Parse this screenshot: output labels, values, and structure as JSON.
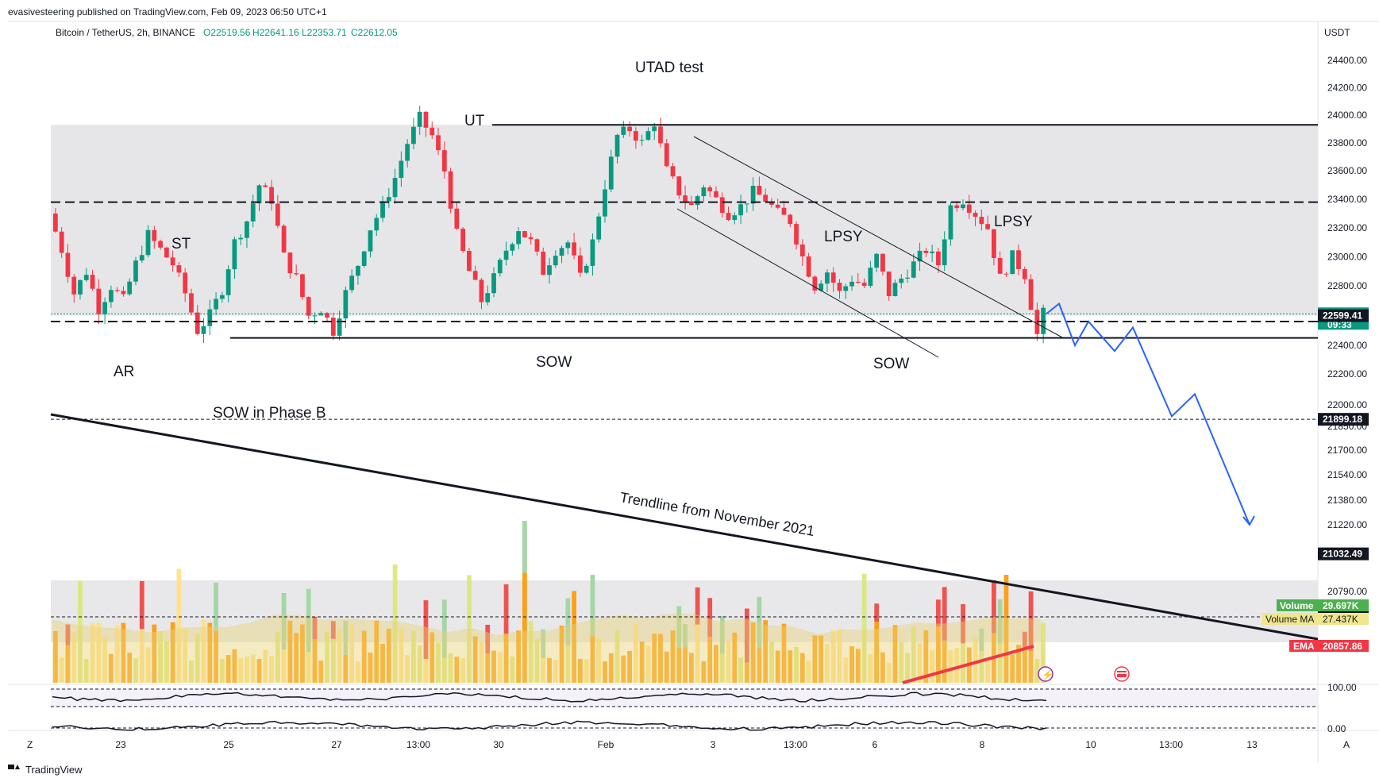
{
  "header": {
    "published": "evasivesteering published on TradingView.com, Feb 09, 2023 06:50 UTC+1",
    "symbol": "Bitcoin / TetherUS, 2h, BINANCE",
    "ohlc": {
      "open": "O22519.56",
      "high": "H22641.16",
      "low": "L22353.71",
      "close": "C22612.05"
    },
    "currency": "USDT"
  },
  "colors": {
    "up": "#089981",
    "down": "#f23645",
    "range": "#e6e6e8",
    "projection": "#2962ff",
    "vol_up": "#a5d6a7",
    "vol_down": "#ef5350",
    "vol_ma": "#e8d27a",
    "ema": "#f23645",
    "orange": "#ff9800"
  },
  "chart_data": {
    "type": "candlestick",
    "symbol": "BTCUSDT",
    "timeframe": "2h",
    "exchange": "BINANCE",
    "x_ticks": [
      "23",
      "25",
      "27",
      "13:00",
      "30",
      "Feb",
      "3",
      "13:00",
      "6",
      "8",
      "10",
      "13:00",
      "13"
    ],
    "y_ticks": [
      24400,
      24200,
      24000,
      23800,
      23600,
      23400,
      23200,
      23000,
      22800,
      22400,
      22200,
      22000,
      21850,
      21700,
      21540,
      21380,
      21220,
      20790,
      20650
    ],
    "ylim": [
      20560,
      24680
    ],
    "price_path": [
      [
        0,
        23300
      ],
      [
        2,
        23050
      ],
      [
        4,
        22750
      ],
      [
        6,
        22900
      ],
      [
        8,
        22650
      ],
      [
        10,
        22800
      ],
      [
        12,
        22700
      ],
      [
        14,
        22950
      ],
      [
        16,
        23150
      ],
      [
        18,
        23050
      ],
      [
        20,
        22950
      ],
      [
        22,
        22750
      ],
      [
        24,
        22500
      ],
      [
        26,
        22600
      ],
      [
        28,
        22780
      ],
      [
        30,
        23100
      ],
      [
        32,
        23250
      ],
      [
        34,
        23500
      ],
      [
        36,
        23400
      ],
      [
        38,
        23000
      ],
      [
        40,
        22850
      ],
      [
        42,
        22600
      ],
      [
        44,
        22650
      ],
      [
        46,
        22500
      ],
      [
        48,
        22750
      ],
      [
        50,
        22950
      ],
      [
        52,
        23200
      ],
      [
        54,
        23350
      ],
      [
        56,
        23550
      ],
      [
        58,
        23800
      ],
      [
        60,
        23980
      ],
      [
        62,
        23850
      ],
      [
        64,
        23600
      ],
      [
        66,
        23150
      ],
      [
        68,
        22900
      ],
      [
        70,
        22700
      ],
      [
        72,
        22850
      ],
      [
        74,
        23050
      ],
      [
        76,
        23200
      ],
      [
        78,
        23100
      ],
      [
        80,
        22900
      ],
      [
        82,
        23050
      ],
      [
        84,
        23100
      ],
      [
        86,
        22850
      ],
      [
        88,
        23100
      ],
      [
        90,
        23500
      ],
      [
        92,
        23850
      ],
      [
        94,
        23900
      ],
      [
        96,
        23800
      ],
      [
        98,
        23950
      ],
      [
        100,
        23600
      ],
      [
        102,
        23450
      ],
      [
        104,
        23350
      ],
      [
        106,
        23500
      ],
      [
        108,
        23400
      ],
      [
        110,
        23300
      ],
      [
        112,
        23350
      ],
      [
        114,
        23450
      ],
      [
        116,
        23400
      ],
      [
        118,
        23300
      ],
      [
        120,
        23250
      ],
      [
        122,
        23000
      ],
      [
        124,
        22800
      ],
      [
        126,
        22900
      ],
      [
        128,
        22750
      ],
      [
        130,
        22850
      ],
      [
        132,
        22800
      ],
      [
        134,
        23000
      ],
      [
        136,
        22750
      ],
      [
        138,
        22850
      ],
      [
        140,
        22950
      ],
      [
        142,
        23050
      ],
      [
        144,
        22950
      ],
      [
        146,
        23350
      ],
      [
        148,
        23400
      ],
      [
        150,
        23300
      ],
      [
        152,
        23200
      ],
      [
        154,
        22850
      ],
      [
        156,
        23000
      ],
      [
        158,
        22880
      ],
      [
        160,
        22470
      ],
      [
        161,
        22612
      ]
    ],
    "candle_count": 161,
    "price_lines": [
      {
        "label": "22612.05",
        "value": 22612.05,
        "sublabel": "09:33",
        "style": "dotted"
      },
      {
        "label": "22599.41",
        "value": 22599.41,
        "style": "solid"
      },
      {
        "label": "21899.18",
        "value": 21899.18,
        "style": "dashed"
      },
      {
        "label": "21032.49",
        "value": 21032.49,
        "style": "dashed"
      }
    ],
    "range_box": {
      "top": 23930,
      "bottom": 22600
    },
    "levels": {
      "range_high": 23930,
      "mid": 23380,
      "support_dashed": 22560,
      "support_solid": 22450
    },
    "volume": {
      "label_volume": "Volume",
      "value_volume": "29.697K",
      "label_ma": "Volume MA",
      "value_ma": "27.437K",
      "label_ema": "EMA",
      "value_ema": "20857.86"
    },
    "oscillator_ticks": [
      "100.00",
      "0.00"
    ],
    "projection_path": [
      [
        22612,
        0
      ],
      [
        22680,
        1
      ],
      [
        22400,
        2
      ],
      [
        22560,
        3
      ],
      [
        22360,
        4
      ],
      [
        22520,
        5
      ],
      [
        21920,
        6
      ],
      [
        22070,
        7
      ],
      [
        21220,
        8
      ]
    ],
    "annotations": [
      {
        "text": "UTAD test"
      },
      {
        "text": "UT"
      },
      {
        "text": "ST"
      },
      {
        "text": "AR"
      },
      {
        "text": "SOW in Phase B"
      },
      {
        "text": "SOW"
      },
      {
        "text": "SOW"
      },
      {
        "text": "LPSY"
      },
      {
        "text": "LPSY"
      },
      {
        "text": "Trendline from November 2021"
      }
    ]
  },
  "footer": {
    "brand": "TradingView",
    "zoom_left": "Z",
    "zoom_right": "A"
  }
}
